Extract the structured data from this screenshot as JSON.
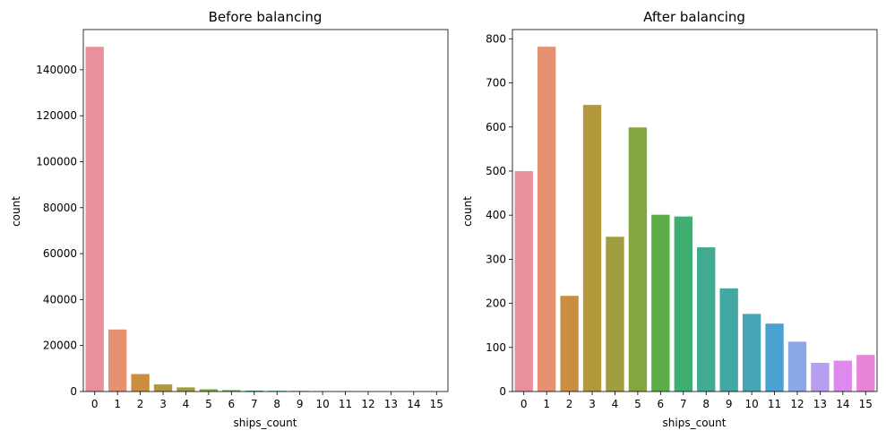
{
  "colors": [
    "#e8919d",
    "#e49071",
    "#c98e40",
    "#b3993c",
    "#a09e3f",
    "#84a63f",
    "#5cad48",
    "#3fae72",
    "#42aa8f",
    "#43a8a1",
    "#45a6b5",
    "#4aa2d2",
    "#8aa7e8",
    "#b79ef0",
    "#df88ee",
    "#e884d5"
  ],
  "chart_data": [
    {
      "type": "bar",
      "title": "Before balancing",
      "xlabel": "ships_count",
      "ylabel": "count",
      "categories": [
        "0",
        "1",
        "2",
        "3",
        "4",
        "5",
        "6",
        "7",
        "8",
        "9",
        "10",
        "11",
        "12",
        "13",
        "14",
        "15"
      ],
      "values": [
        150000,
        27000,
        7600,
        3100,
        1800,
        1000,
        600,
        400,
        300,
        250,
        200,
        150,
        120,
        100,
        90,
        80
      ],
      "ylim": [
        0,
        157500
      ],
      "yticks": [
        0,
        20000,
        40000,
        60000,
        80000,
        100000,
        120000,
        140000
      ],
      "grid": false
    },
    {
      "type": "bar",
      "title": "After balancing",
      "xlabel": "ships_count",
      "ylabel": "count",
      "categories": [
        "0",
        "1",
        "2",
        "3",
        "4",
        "5",
        "6",
        "7",
        "8",
        "9",
        "10",
        "11",
        "12",
        "13",
        "14",
        "15"
      ],
      "values": [
        500,
        782,
        217,
        650,
        351,
        599,
        401,
        397,
        327,
        234,
        176,
        154,
        113,
        65,
        70,
        83
      ],
      "ylim": [
        0,
        821
      ],
      "yticks": [
        0,
        100,
        200,
        300,
        400,
        500,
        600,
        700,
        800
      ],
      "grid": false
    }
  ]
}
